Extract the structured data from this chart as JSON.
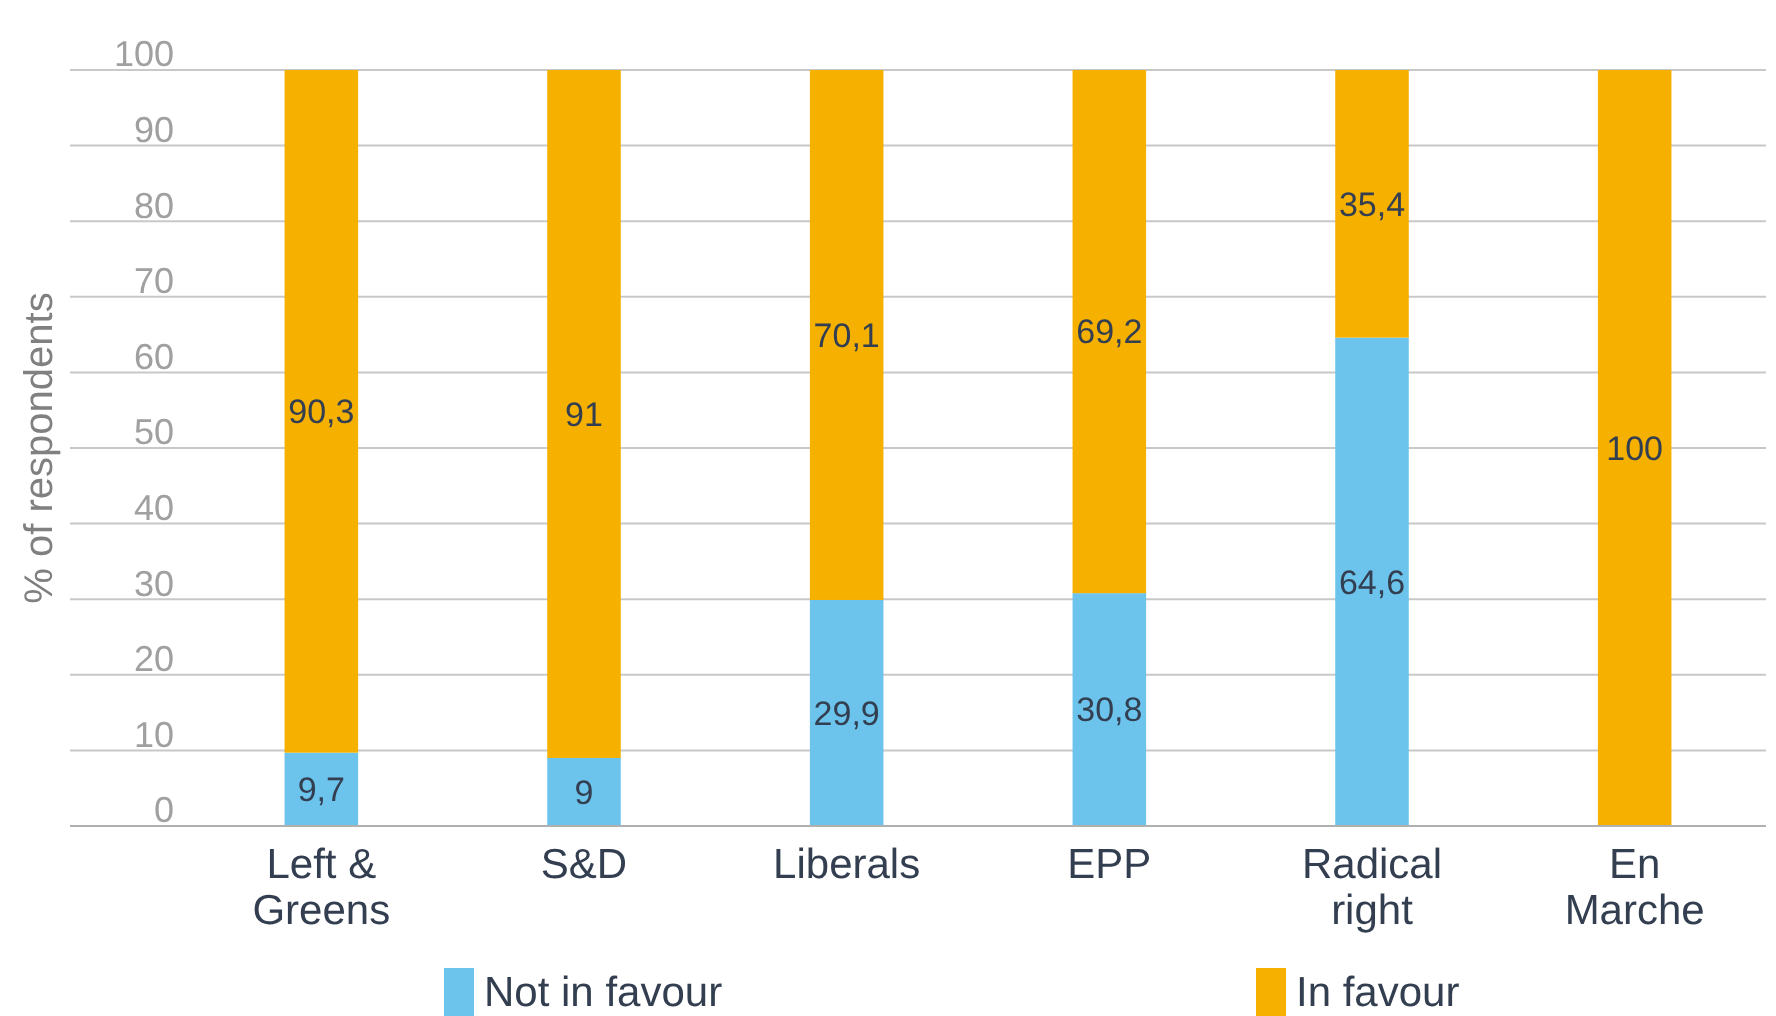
{
  "chart_data": {
    "type": "bar",
    "stacked": true,
    "ylabel": "% of respondents",
    "categories": [
      "Left & Greens",
      "S&D",
      "Liberals",
      "EPP",
      "Radical right",
      "En Marche"
    ],
    "series": [
      {
        "name": "Not in favour",
        "color": "#6cc4ec",
        "values": [
          9.7,
          9,
          29.9,
          30.8,
          64.6,
          0
        ],
        "value_labels": [
          "9,7",
          "9",
          "29,9",
          "30,8",
          "64,6",
          null
        ]
      },
      {
        "name": "In favour",
        "color": "#f5b000",
        "values": [
          90.3,
          91,
          70.1,
          69.2,
          35.4,
          100
        ],
        "value_labels": [
          "90,3",
          "91",
          "70,1",
          "69,2",
          "35,4",
          "100"
        ]
      }
    ],
    "ylim": [
      0,
      100
    ],
    "yticks": [
      0,
      10,
      20,
      30,
      40,
      50,
      60,
      70,
      80,
      90,
      100
    ],
    "grid": "y",
    "legend": "bottom"
  }
}
